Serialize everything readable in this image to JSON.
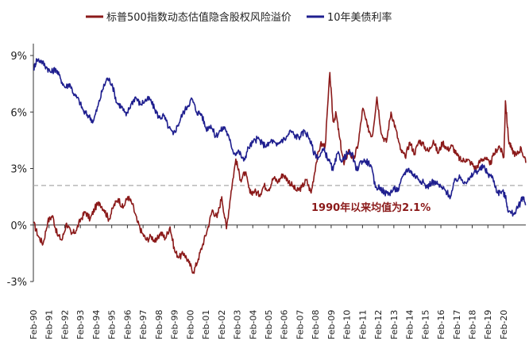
{
  "chart_data": {
    "type": "line",
    "title": "",
    "xlabel": "",
    "ylabel": "",
    "ylim": [
      -3,
      10
    ],
    "y_ticks": [
      "-3%",
      "0%",
      "3%",
      "6%",
      "9%"
    ],
    "y_tick_values": [
      -3,
      0,
      3,
      6,
      9
    ],
    "x_ticks": [
      "Feb-90",
      "Feb-91",
      "Feb-92",
      "Feb-93",
      "Feb-94",
      "Feb-95",
      "Feb-96",
      "Feb-97",
      "Feb-98",
      "Feb-99",
      "Feb-00",
      "Feb-01",
      "Feb-02",
      "Feb-03",
      "Feb-04",
      "Feb-05",
      "Feb-06",
      "Feb-07",
      "Feb-08",
      "Feb-09",
      "Feb-10",
      "Feb-11",
      "Feb-12",
      "Feb-13",
      "Feb-14",
      "Feb-15",
      "Feb-16",
      "Feb-17",
      "Feb-18",
      "Feb-19",
      "Feb-20"
    ],
    "x_range": [
      1990.08,
      2021.5
    ],
    "legend": [
      "标普500指数动态估值隐含股权风险溢价",
      "10年美债利率"
    ],
    "colors": {
      "erp": "#8b1a1a",
      "yield": "#1f1f8f",
      "mean": "#aaaaaa",
      "annotation": "#8b1a1a"
    },
    "annotation": "1990年以来均值为2.1%",
    "mean_value": 2.1,
    "series": [
      {
        "name": "标普500指数动态估值隐含股权风险溢价",
        "x": [
          1990.1,
          1990.4,
          1990.7,
          1991.0,
          1991.3,
          1991.6,
          1991.9,
          1992.2,
          1992.5,
          1992.8,
          1993.1,
          1993.4,
          1993.7,
          1994.0,
          1994.3,
          1994.6,
          1994.9,
          1995.2,
          1995.5,
          1995.8,
          1996.1,
          1996.4,
          1996.7,
          1997.0,
          1997.3,
          1997.6,
          1997.9,
          1998.2,
          1998.5,
          1998.8,
          1999.1,
          1999.4,
          1999.7,
          2000.0,
          2000.3,
          2000.6,
          2000.9,
          2001.2,
          2001.5,
          2001.8,
          2002.1,
          2002.4,
          2002.7,
          2003.0,
          2003.3,
          2003.6,
          2003.9,
          2004.2,
          2004.5,
          2004.8,
          2005.1,
          2005.4,
          2005.7,
          2006.0,
          2006.3,
          2006.6,
          2006.9,
          2007.2,
          2007.5,
          2007.8,
          2008.1,
          2008.4,
          2008.7,
          2009.0,
          2009.2,
          2009.4,
          2009.6,
          2009.9,
          2010.2,
          2010.5,
          2010.8,
          2011.1,
          2011.4,
          2011.7,
          2012.0,
          2012.3,
          2012.6,
          2012.9,
          2013.2,
          2013.5,
          2013.8,
          2014.1,
          2014.4,
          2014.7,
          2015.0,
          2015.3,
          2015.6,
          2015.9,
          2016.2,
          2016.5,
          2016.8,
          2017.1,
          2017.4,
          2017.7,
          2018.0,
          2018.3,
          2018.6,
          2018.9,
          2019.2,
          2019.5,
          2019.8,
          2020.1,
          2020.2,
          2020.4,
          2020.6,
          2020.9,
          2021.2,
          2021.5
        ],
        "values": [
          0.1,
          -0.6,
          -1.0,
          0.2,
          0.5,
          -0.5,
          -0.8,
          0.1,
          -0.5,
          -0.3,
          0.3,
          0.7,
          0.3,
          0.9,
          1.2,
          0.8,
          0.3,
          1.0,
          1.4,
          0.9,
          1.5,
          1.1,
          0.2,
          -0.4,
          -0.8,
          -0.6,
          -0.9,
          -0.4,
          -0.7,
          -0.1,
          -1.4,
          -1.7,
          -1.5,
          -2.0,
          -2.5,
          -1.8,
          -1.0,
          -0.2,
          0.8,
          0.4,
          1.5,
          -0.2,
          1.8,
          3.5,
          2.4,
          2.8,
          1.7,
          1.8,
          1.6,
          2.1,
          1.9,
          2.5,
          2.3,
          2.7,
          2.4,
          2.1,
          1.8,
          2.0,
          2.4,
          1.7,
          3.2,
          4.3,
          4.2,
          8.1,
          5.5,
          5.9,
          4.7,
          3.2,
          4.0,
          3.4,
          4.3,
          6.2,
          5.2,
          4.7,
          6.8,
          4.8,
          4.4,
          6.0,
          5.1,
          4.0,
          3.6,
          4.4,
          3.8,
          4.5,
          4.2,
          3.9,
          4.5,
          3.8,
          4.4,
          4.0,
          4.2,
          3.7,
          3.4,
          3.5,
          3.3,
          3.0,
          3.4,
          3.6,
          3.2,
          3.8,
          4.2,
          3.6,
          6.6,
          4.5,
          4.0,
          3.7,
          4.1,
          3.3
        ]
      },
      {
        "name": "10年美债利率",
        "x": [
          1990.1,
          1990.3,
          1990.6,
          1990.9,
          1991.2,
          1991.5,
          1991.8,
          1992.1,
          1992.4,
          1992.7,
          1993.0,
          1993.3,
          1993.6,
          1993.9,
          1994.2,
          1994.5,
          1994.8,
          1995.1,
          1995.4,
          1995.7,
          1996.0,
          1996.3,
          1996.6,
          1996.9,
          1997.2,
          1997.5,
          1997.8,
          1998.1,
          1998.4,
          1998.7,
          1999.0,
          1999.3,
          1999.6,
          1999.9,
          2000.2,
          2000.5,
          2000.8,
          2001.1,
          2001.4,
          2001.7,
          2002.0,
          2002.3,
          2002.6,
          2002.9,
          2003.2,
          2003.5,
          2003.8,
          2004.1,
          2004.4,
          2004.7,
          2005.0,
          2005.3,
          2005.6,
          2005.9,
          2006.2,
          2006.5,
          2006.8,
          2007.1,
          2007.4,
          2007.7,
          2008.0,
          2008.3,
          2008.6,
          2008.9,
          2009.2,
          2009.5,
          2009.8,
          2010.1,
          2010.4,
          2010.7,
          2011.0,
          2011.3,
          2011.6,
          2011.9,
          2012.2,
          2012.5,
          2012.8,
          2013.1,
          2013.4,
          2013.7,
          2014.0,
          2014.3,
          2014.6,
          2014.9,
          2015.2,
          2015.5,
          2015.8,
          2016.1,
          2016.4,
          2016.7,
          2017.0,
          2017.3,
          2017.6,
          2017.9,
          2018.2,
          2018.5,
          2018.8,
          2019.1,
          2019.4,
          2019.7,
          2020.0,
          2020.2,
          2020.4,
          2020.7,
          2021.0,
          2021.3,
          2021.5
        ],
        "values": [
          8.3,
          8.8,
          8.7,
          8.4,
          8.1,
          8.3,
          7.8,
          7.3,
          7.5,
          6.9,
          6.6,
          6.0,
          5.8,
          5.5,
          6.3,
          7.2,
          7.8,
          7.5,
          6.5,
          6.3,
          5.8,
          6.4,
          6.8,
          6.4,
          6.6,
          6.7,
          6.2,
          5.7,
          5.8,
          5.2,
          4.8,
          5.3,
          5.9,
          6.3,
          6.7,
          6.0,
          5.9,
          5.1,
          5.3,
          4.7,
          5.0,
          5.2,
          4.5,
          3.8,
          3.9,
          3.4,
          4.1,
          4.4,
          4.6,
          4.3,
          4.2,
          4.5,
          4.2,
          4.5,
          4.6,
          5.0,
          4.7,
          4.7,
          5.0,
          4.6,
          3.8,
          3.6,
          4.0,
          3.5,
          2.9,
          3.8,
          3.4,
          3.8,
          3.8,
          2.9,
          3.4,
          3.4,
          3.2,
          2.0,
          2.0,
          1.7,
          1.7,
          1.9,
          1.9,
          2.7,
          3.0,
          2.7,
          2.5,
          2.3,
          2.0,
          2.3,
          2.2,
          2.0,
          1.8,
          1.5,
          2.4,
          2.5,
          2.3,
          2.4,
          2.8,
          2.9,
          3.1,
          2.7,
          2.5,
          1.7,
          1.8,
          1.5,
          0.7,
          0.6,
          0.9,
          1.5,
          1.1
        ]
      }
    ]
  }
}
